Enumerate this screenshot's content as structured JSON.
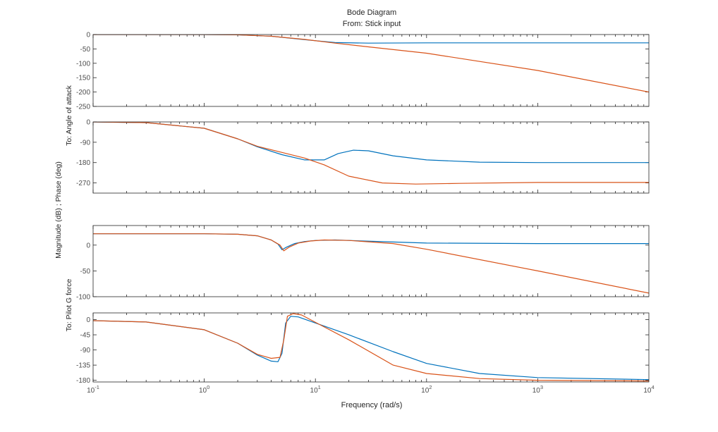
{
  "title": "Bode Diagram",
  "subtitle": "From: Stick input",
  "xlabel": "Frequency (rad/s)",
  "shared_ylabel": "Magnitude (dB) ; Phase (deg)",
  "row_labels": [
    {
      "text": "To: Angle of attack",
      "rows": [
        0,
        1
      ]
    },
    {
      "text": "To: Pilot G force",
      "rows": [
        2,
        3
      ]
    }
  ],
  "x_ticks": {
    "exponents": [
      "-1",
      "0",
      "1",
      "2",
      "3",
      "4"
    ],
    "base": "10"
  },
  "colors": {
    "series1": "#0072BD",
    "series2": "#D95319",
    "axes": "#262626",
    "ticklabel": "#4d4d4d"
  },
  "chart_data": [
    {
      "type": "line",
      "panel": "Angle of attack - Magnitude",
      "xscale": "log",
      "xlim": [
        0.1,
        10000
      ],
      "ylim": [
        -250,
        0
      ],
      "yticks": [
        0,
        -50,
        -100,
        -150,
        -200,
        -250
      ],
      "ytick_labels": [
        "0",
        "-50",
        "-100",
        "-150",
        "-200",
        "-250"
      ],
      "series": [
        {
          "name": "series1",
          "x": [
            0.1,
            1,
            2,
            4,
            8,
            15,
            30,
            100,
            1000,
            10000
          ],
          "y": [
            0,
            0,
            -1,
            -6,
            -18,
            -28,
            -30,
            -29,
            -29,
            -29
          ]
        },
        {
          "name": "series2",
          "x": [
            0.1,
            1,
            2,
            4,
            8,
            15,
            30,
            100,
            1000,
            10000
          ],
          "y": [
            0,
            0,
            -1,
            -6,
            -17,
            -30,
            -43,
            -65,
            -125,
            -200
          ]
        }
      ]
    },
    {
      "type": "line",
      "panel": "Angle of attack - Phase",
      "xscale": "log",
      "xlim": [
        0.1,
        10000
      ],
      "ylim": [
        -315,
        0
      ],
      "yticks": [
        0,
        -90,
        -180,
        -270
      ],
      "ytick_labels": [
        "0",
        "-90",
        "-180",
        "-270"
      ],
      "series": [
        {
          "name": "series1",
          "x": [
            0.1,
            0.3,
            1,
            2,
            3,
            5,
            8,
            12,
            16,
            22,
            30,
            50,
            100,
            300,
            1000,
            10000
          ],
          "y": [
            0,
            -3,
            -28,
            -75,
            -110,
            -145,
            -168,
            -168,
            -140,
            -125,
            -128,
            -150,
            -168,
            -178,
            -180,
            -180
          ]
        },
        {
          "name": "series2",
          "x": [
            0.1,
            0.3,
            1,
            2,
            3,
            5,
            8,
            12,
            20,
            40,
            80,
            200,
            1000,
            10000
          ],
          "y": [
            0,
            -3,
            -28,
            -75,
            -108,
            -135,
            -160,
            -190,
            -240,
            -270,
            -275,
            -272,
            -268,
            -268
          ]
        }
      ]
    },
    {
      "type": "line",
      "panel": "Pilot G force - Magnitude",
      "xscale": "log",
      "xlim": [
        0.1,
        10000
      ],
      "ylim": [
        -100,
        38
      ],
      "yticks": [
        0,
        -50,
        -100
      ],
      "ytick_labels": [
        "0",
        "-50",
        "-100"
      ],
      "series": [
        {
          "name": "series1",
          "x": [
            0.1,
            1,
            2,
            3,
            4,
            4.6,
            5,
            5.5,
            6.5,
            8,
            10,
            15,
            20,
            50,
            100,
            1000,
            10000
          ],
          "y": [
            22,
            22,
            21,
            18,
            10,
            2,
            -9,
            -4,
            3,
            7,
            9,
            10,
            9,
            6,
            4,
            3,
            3
          ]
        },
        {
          "name": "series2",
          "x": [
            0.1,
            1,
            2,
            3,
            4,
            4.8,
            5.2,
            5.8,
            7,
            9,
            12,
            20,
            50,
            100,
            1000,
            10000
          ],
          "y": [
            22,
            22,
            21,
            18,
            10,
            0,
            -11,
            -4,
            4,
            8,
            10,
            9,
            3,
            -8,
            -50,
            -93
          ]
        }
      ]
    },
    {
      "type": "line",
      "panel": "Pilot G force - Phase",
      "xscale": "log",
      "xlim": [
        0.1,
        10000
      ],
      "ylim": [
        -185,
        20
      ],
      "yticks": [
        0,
        -45,
        -90,
        -135,
        -180
      ],
      "ytick_labels": [
        "0",
        "-45",
        "-90",
        "-135",
        "-180"
      ],
      "series": [
        {
          "name": "series1",
          "x": [
            0.1,
            0.3,
            1,
            2,
            3,
            4,
            4.6,
            5,
            5.4,
            6,
            7,
            10,
            20,
            50,
            100,
            300,
            1000,
            10000
          ],
          "y": [
            -3,
            -7,
            -30,
            -70,
            -105,
            -123,
            -125,
            -100,
            -10,
            10,
            8,
            -10,
            -45,
            -95,
            -130,
            -160,
            -172,
            -178
          ]
        },
        {
          "name": "series2",
          "x": [
            0.1,
            0.3,
            1,
            2,
            3,
            4,
            4.8,
            5.2,
            5.6,
            6.3,
            7.5,
            10,
            20,
            50,
            100,
            300,
            1000,
            10000
          ],
          "y": [
            -3,
            -7,
            -30,
            -70,
            -103,
            -115,
            -112,
            -60,
            10,
            18,
            14,
            -8,
            -60,
            -135,
            -160,
            -175,
            -180,
            -182
          ]
        }
      ]
    }
  ]
}
